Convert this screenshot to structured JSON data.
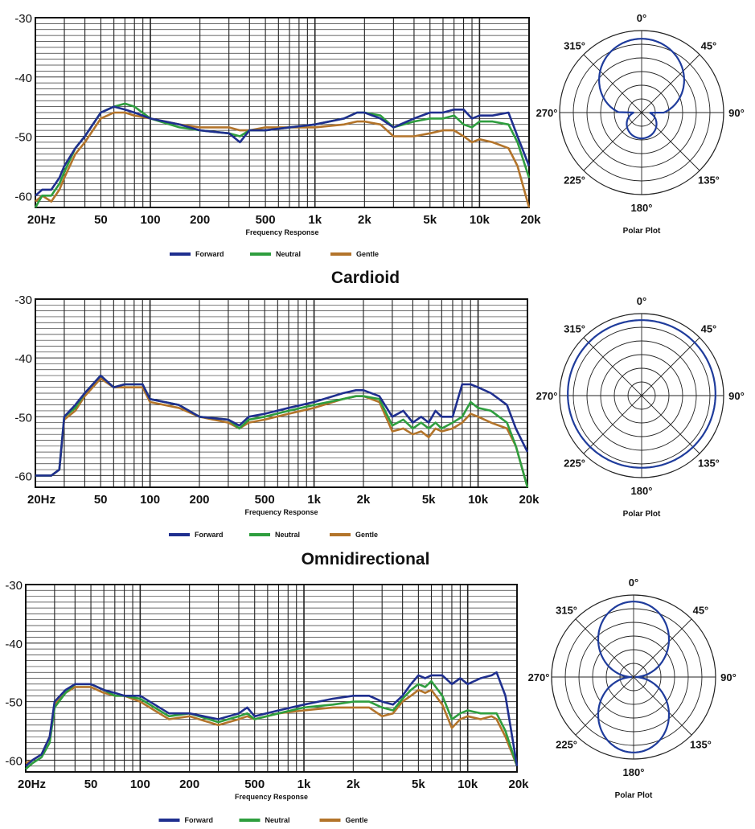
{
  "chart_data": [
    {
      "type": "line",
      "section_title": "",
      "xlabel": "Frequency Response",
      "x_scale": "log",
      "xlim": [
        20,
        20000
      ],
      "ylim": [
        -62,
        -30
      ],
      "xticks": [
        20,
        50,
        100,
        200,
        500,
        1000,
        2000,
        5000,
        10000,
        20000
      ],
      "xtick_labels": [
        "20Hz",
        "50",
        "100",
        "200",
        "500",
        "1k",
        "2k",
        "5k",
        "10k",
        "20k"
      ],
      "yticks": [
        -30,
        -40,
        -50,
        -60
      ],
      "ytick_labels": [
        "-30",
        "-40",
        "-50",
        "-60"
      ],
      "grid": true,
      "legend_position": "bottom",
      "series": [
        {
          "name": "Forward",
          "color": "#1f2f8f",
          "x": [
            20,
            22,
            25,
            28,
            30,
            35,
            40,
            50,
            60,
            70,
            80,
            100,
            150,
            200,
            300,
            350,
            400,
            500,
            700,
            1000,
            1500,
            1800,
            2000,
            2500,
            3000,
            4000,
            5000,
            6000,
            7000,
            8000,
            9000,
            10000,
            12000,
            15000,
            17000,
            20000
          ],
          "y": [
            -60,
            -59,
            -59,
            -57,
            -55,
            -52,
            -50,
            -46,
            -45,
            -45.5,
            -46,
            -47,
            -48,
            -49,
            -49.5,
            -51,
            -49,
            -49,
            -48.5,
            -48,
            -47,
            -46,
            -46,
            -47,
            -48.5,
            -47,
            -46,
            -46,
            -45.5,
            -45.5,
            -47,
            -46.5,
            -46.5,
            -46,
            -50,
            -55
          ]
        },
        {
          "name": "Neutral",
          "color": "#2e9e3e",
          "x": [
            20,
            22,
            25,
            28,
            30,
            35,
            40,
            50,
            60,
            70,
            80,
            100,
            150,
            200,
            300,
            350,
            400,
            500,
            700,
            1000,
            1500,
            1800,
            2000,
            2500,
            3000,
            4000,
            5000,
            6000,
            7000,
            8000,
            9000,
            10000,
            12000,
            15000,
            17000,
            20000
          ],
          "y": [
            -62,
            -60,
            -60,
            -58,
            -56,
            -52,
            -50,
            -46,
            -45,
            -44.5,
            -45,
            -47,
            -48.5,
            -49,
            -49.5,
            -50,
            -49,
            -49,
            -48.5,
            -48,
            -47,
            -46,
            -46,
            -46.5,
            -48.5,
            -47.5,
            -47,
            -47,
            -46.5,
            -48,
            -48.5,
            -47.5,
            -47.5,
            -48,
            -51,
            -57
          ]
        },
        {
          "name": "Gentle",
          "color": "#b3742a",
          "x": [
            20,
            22,
            25,
            28,
            30,
            35,
            40,
            50,
            60,
            70,
            80,
            100,
            150,
            200,
            300,
            350,
            400,
            500,
            700,
            1000,
            1500,
            1800,
            2000,
            2500,
            3000,
            4000,
            5000,
            6000,
            7000,
            8000,
            9000,
            10000,
            12000,
            15000,
            17000,
            20000
          ],
          "y": [
            -61,
            -60,
            -61,
            -59,
            -57,
            -53,
            -51,
            -47,
            -46,
            -46,
            -46.5,
            -47,
            -48,
            -48.5,
            -48.5,
            -49,
            -49,
            -48.5,
            -48.5,
            -48.5,
            -48,
            -47.5,
            -47.5,
            -48,
            -50,
            -50,
            -49.5,
            -49,
            -49,
            -50,
            -51,
            -50.5,
            -51,
            -52,
            -55,
            -62
          ]
        }
      ]
    },
    {
      "type": "line",
      "section_title": "Cardioid",
      "xlabel": "Frequency Response",
      "x_scale": "log",
      "xlim": [
        20,
        20000
      ],
      "ylim": [
        -62,
        -30
      ],
      "xticks": [
        20,
        50,
        100,
        200,
        500,
        1000,
        2000,
        5000,
        10000,
        20000
      ],
      "xtick_labels": [
        "20Hz",
        "50",
        "100",
        "200",
        "500",
        "1k",
        "2k",
        "5k",
        "10k",
        "20k"
      ],
      "yticks": [
        -30,
        -40,
        -50,
        -60
      ],
      "ytick_labels": [
        "-30",
        "-40",
        "-50",
        "-60"
      ],
      "grid": true,
      "legend_position": "bottom",
      "series": [
        {
          "name": "Forward",
          "color": "#1f2f8f",
          "x": [
            20,
            22,
            25,
            28,
            30,
            35,
            40,
            50,
            60,
            70,
            80,
            90,
            100,
            150,
            200,
            300,
            350,
            400,
            500,
            700,
            1000,
            1500,
            1800,
            2000,
            2500,
            3000,
            3500,
            4000,
            4500,
            5000,
            5500,
            6000,
            7000,
            8000,
            9000,
            10000,
            12000,
            15000,
            17000,
            20000
          ],
          "y": [
            -60,
            -60,
            -60,
            -59,
            -50,
            -48,
            -46,
            -43,
            -45,
            -44.5,
            -44.5,
            -44.5,
            -47,
            -48,
            -50,
            -50.5,
            -51.5,
            -50,
            -49.5,
            -48.5,
            -47.5,
            -46,
            -45.5,
            -45.5,
            -46.5,
            -50,
            -49,
            -51,
            -50,
            -51,
            -49,
            -50,
            -50,
            -44.5,
            -44.5,
            -45,
            -46,
            -48,
            -52,
            -56
          ]
        },
        {
          "name": "Neutral",
          "color": "#2e9e3e",
          "x": [
            20,
            22,
            25,
            28,
            30,
            35,
            40,
            50,
            60,
            70,
            80,
            90,
            100,
            150,
            200,
            300,
            350,
            400,
            500,
            700,
            1000,
            1500,
            1800,
            2000,
            2500,
            3000,
            3500,
            4000,
            4500,
            5000,
            5500,
            6000,
            7000,
            8000,
            9000,
            10000,
            12000,
            15000,
            17000,
            20000
          ],
          "y": [
            -60,
            -60,
            -60,
            -59,
            -50,
            -48.5,
            -46,
            -43,
            -45,
            -44.5,
            -44.5,
            -44.5,
            -47,
            -48,
            -50,
            -50.5,
            -52,
            -50.5,
            -50,
            -49,
            -48,
            -47,
            -46.5,
            -46.5,
            -47,
            -51.5,
            -50.5,
            -52,
            -51,
            -52,
            -51,
            -52,
            -51,
            -50,
            -47.5,
            -48.5,
            -49,
            -51,
            -55,
            -62
          ]
        },
        {
          "name": "Gentle",
          "color": "#b3742a",
          "x": [
            20,
            22,
            25,
            28,
            30,
            35,
            40,
            50,
            60,
            70,
            80,
            90,
            100,
            150,
            200,
            300,
            350,
            400,
            500,
            700,
            1000,
            1500,
            1800,
            2000,
            2500,
            3000,
            3500,
            4000,
            4500,
            5000,
            5500,
            6000,
            7000,
            8000,
            9000,
            10000,
            12000,
            15000,
            17000,
            20000
          ],
          "y": [
            -60,
            -60,
            -60,
            -59,
            -50.5,
            -49,
            -46.5,
            -43.5,
            -45,
            -45,
            -45,
            -45,
            -47.5,
            -48.5,
            -50,
            -51,
            -52,
            -51,
            -50.5,
            -49.5,
            -48.5,
            -47,
            -46.5,
            -46.5,
            -47.5,
            -52.5,
            -52,
            -53,
            -52.5,
            -53.5,
            -52,
            -52.5,
            -52,
            -51,
            -49.5,
            -50,
            -51,
            -52,
            -55,
            -62
          ]
        }
      ]
    },
    {
      "type": "line",
      "section_title": "Omnidirectional",
      "xlabel": "Frequency Response",
      "x_scale": "log",
      "xlim": [
        20,
        20000
      ],
      "ylim": [
        -62,
        -30
      ],
      "xticks": [
        20,
        50,
        100,
        200,
        500,
        1000,
        2000,
        5000,
        10000,
        20000
      ],
      "xtick_labels": [
        "20Hz",
        "50",
        "100",
        "200",
        "500",
        "1k",
        "2k",
        "5k",
        "10k",
        "20k"
      ],
      "yticks": [
        -30,
        -40,
        -50,
        -60
      ],
      "ytick_labels": [
        "-30",
        "-40",
        "-50",
        "-60"
      ],
      "grid": true,
      "legend_position": "bottom",
      "series": [
        {
          "name": "Forward",
          "color": "#1f2f8f",
          "x": [
            20,
            22,
            25,
            28,
            30,
            35,
            40,
            50,
            60,
            70,
            80,
            100,
            150,
            200,
            300,
            400,
            450,
            500,
            700,
            1000,
            1500,
            2000,
            2500,
            3000,
            3500,
            4000,
            4500,
            5000,
            5500,
            6000,
            7000,
            8000,
            9000,
            10000,
            12000,
            14000,
            15000,
            17000,
            20000
          ],
          "y": [
            -61,
            -60,
            -59,
            -56,
            -50,
            -48,
            -47,
            -47,
            -48,
            -48.5,
            -49,
            -49,
            -52,
            -52,
            -53,
            -52,
            -51,
            -52.5,
            -51.5,
            -50.5,
            -49.5,
            -49,
            -49,
            -50,
            -50.5,
            -49,
            -47,
            -45.5,
            -46,
            -45.5,
            -45.5,
            -47,
            -46,
            -47,
            -46,
            -45.5,
            -45,
            -49,
            -61
          ]
        },
        {
          "name": "Neutral",
          "color": "#2e9e3e",
          "x": [
            20,
            22,
            25,
            28,
            30,
            35,
            40,
            50,
            60,
            70,
            80,
            100,
            150,
            200,
            300,
            400,
            450,
            500,
            700,
            1000,
            1500,
            2000,
            2500,
            3000,
            3500,
            4000,
            4500,
            5000,
            5500,
            6000,
            7000,
            8000,
            9000,
            10000,
            12000,
            14000,
            15000,
            17000,
            20000
          ],
          "y": [
            -61.5,
            -60.5,
            -59.5,
            -57,
            -51,
            -48.5,
            -47,
            -47,
            -48,
            -49,
            -49,
            -49.5,
            -52.5,
            -52,
            -53.5,
            -52.5,
            -52,
            -53,
            -52,
            -51,
            -50.5,
            -50,
            -50,
            -51,
            -51.5,
            -49.5,
            -48,
            -47,
            -47.5,
            -46.5,
            -49,
            -53,
            -52,
            -51.5,
            -52,
            -52,
            -52,
            -55,
            -61
          ]
        },
        {
          "name": "Gentle",
          "color": "#b3742a",
          "x": [
            20,
            22,
            25,
            28,
            30,
            35,
            40,
            50,
            60,
            70,
            80,
            100,
            150,
            200,
            300,
            400,
            450,
            500,
            700,
            1000,
            1500,
            2000,
            2500,
            3000,
            3500,
            4000,
            4500,
            5000,
            5500,
            6000,
            7000,
            8000,
            9000,
            10000,
            12000,
            14000,
            15000,
            17000,
            20000
          ],
          "y": [
            -60.5,
            -60,
            -59,
            -56,
            -50.5,
            -48.5,
            -47.5,
            -47.5,
            -48.5,
            -49,
            -49,
            -50,
            -53,
            -52.5,
            -54,
            -53,
            -52.5,
            -53,
            -52,
            -51.5,
            -51,
            -51,
            -51,
            -52.5,
            -52,
            -50,
            -49,
            -48,
            -48.5,
            -48,
            -50.5,
            -54.5,
            -53,
            -52.5,
            -53,
            -52.5,
            -53,
            -56,
            -61
          ]
        }
      ]
    }
  ],
  "polar_plots": [
    {
      "title": "Polar Plot",
      "pattern": "cardioid",
      "color": "#1f3c9c",
      "angle_labels": [
        "0°",
        "45°",
        "90°",
        "135°",
        "180°",
        "225°",
        "270°",
        "315°"
      ]
    },
    {
      "title": "Polar Plot",
      "pattern": "omnidirectional",
      "color": "#1f3c9c",
      "angle_labels": [
        "0°",
        "45°",
        "90°",
        "135°",
        "180°",
        "225°",
        "270°",
        "315°"
      ]
    },
    {
      "title": "Polar Plot",
      "pattern": "figure-8",
      "color": "#1f3c9c",
      "angle_labels": [
        "0°",
        "45°",
        "90°",
        "135°",
        "180°",
        "225°",
        "270°",
        "315°"
      ]
    }
  ]
}
